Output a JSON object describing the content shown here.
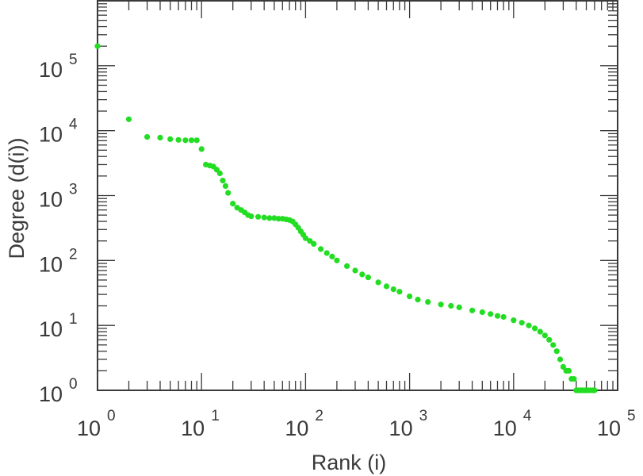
{
  "chart_data": {
    "type": "scatter",
    "title": "",
    "xlabel": "Rank (i)",
    "ylabel": "Degree (d(i))",
    "xscale": "log",
    "yscale": "log",
    "xlim": [
      1,
      100000
    ],
    "ylim": [
      1,
      1000000
    ],
    "grid": false,
    "legend": "none",
    "marker_color": "#22dd22",
    "x_ticks": [
      {
        "base": "10",
        "exp": "0",
        "value": 1
      },
      {
        "base": "10",
        "exp": "1",
        "value": 10
      },
      {
        "base": "10",
        "exp": "2",
        "value": 100
      },
      {
        "base": "10",
        "exp": "3",
        "value": 1000
      },
      {
        "base": "10",
        "exp": "4",
        "value": 10000
      },
      {
        "base": "10",
        "exp": "5",
        "value": 100000
      }
    ],
    "y_ticks": [
      {
        "base": "10",
        "exp": "0",
        "value": 1
      },
      {
        "base": "10",
        "exp": "1",
        "value": 10
      },
      {
        "base": "10",
        "exp": "2",
        "value": 100
      },
      {
        "base": "10",
        "exp": "3",
        "value": 1000
      },
      {
        "base": "10",
        "exp": "4",
        "value": 10000
      },
      {
        "base": "10",
        "exp": "5",
        "value": 100000
      }
    ],
    "series": [
      {
        "x": [
          1,
          2,
          3,
          4,
          5,
          6,
          7,
          8,
          9,
          10,
          11,
          12,
          13,
          14,
          15,
          16,
          17,
          18,
          20,
          22,
          24,
          26,
          28,
          30,
          35,
          40,
          45,
          50,
          55,
          60,
          65,
          70,
          75,
          80,
          85,
          90,
          95,
          100,
          110,
          120,
          140,
          160,
          180,
          200,
          250,
          300,
          350,
          400,
          500,
          600,
          700,
          800,
          1000,
          1200,
          1500,
          2000,
          2500,
          3000,
          4000,
          5000,
          6000,
          7000,
          8000,
          10000,
          12000,
          14000,
          16000,
          18000,
          20000,
          22000,
          24000,
          26000,
          28000,
          30000,
          32000,
          34000,
          36000,
          38000,
          40000,
          42000,
          44000,
          46000,
          48000,
          50000,
          52000,
          55000,
          58000,
          60000
        ],
        "y": [
          200000,
          15000,
          8000,
          7800,
          7400,
          7200,
          7100,
          7100,
          7100,
          5200,
          3000,
          2900,
          2800,
          2500,
          2200,
          1700,
          1400,
          1100,
          750,
          650,
          600,
          550,
          500,
          480,
          470,
          460,
          450,
          450,
          440,
          440,
          430,
          420,
          400,
          360,
          320,
          280,
          250,
          220,
          200,
          180,
          150,
          130,
          115,
          100,
          82,
          70,
          61,
          55,
          46,
          40,
          36,
          33,
          28,
          25,
          23,
          21,
          20,
          19,
          17,
          16,
          15,
          14,
          13.5,
          12,
          11,
          10,
          9,
          8,
          7,
          6,
          5,
          4,
          3,
          2.3,
          2,
          2,
          1.5,
          1.5,
          1,
          1,
          1,
          1,
          1,
          1,
          1,
          1,
          1,
          1
        ]
      }
    ]
  }
}
